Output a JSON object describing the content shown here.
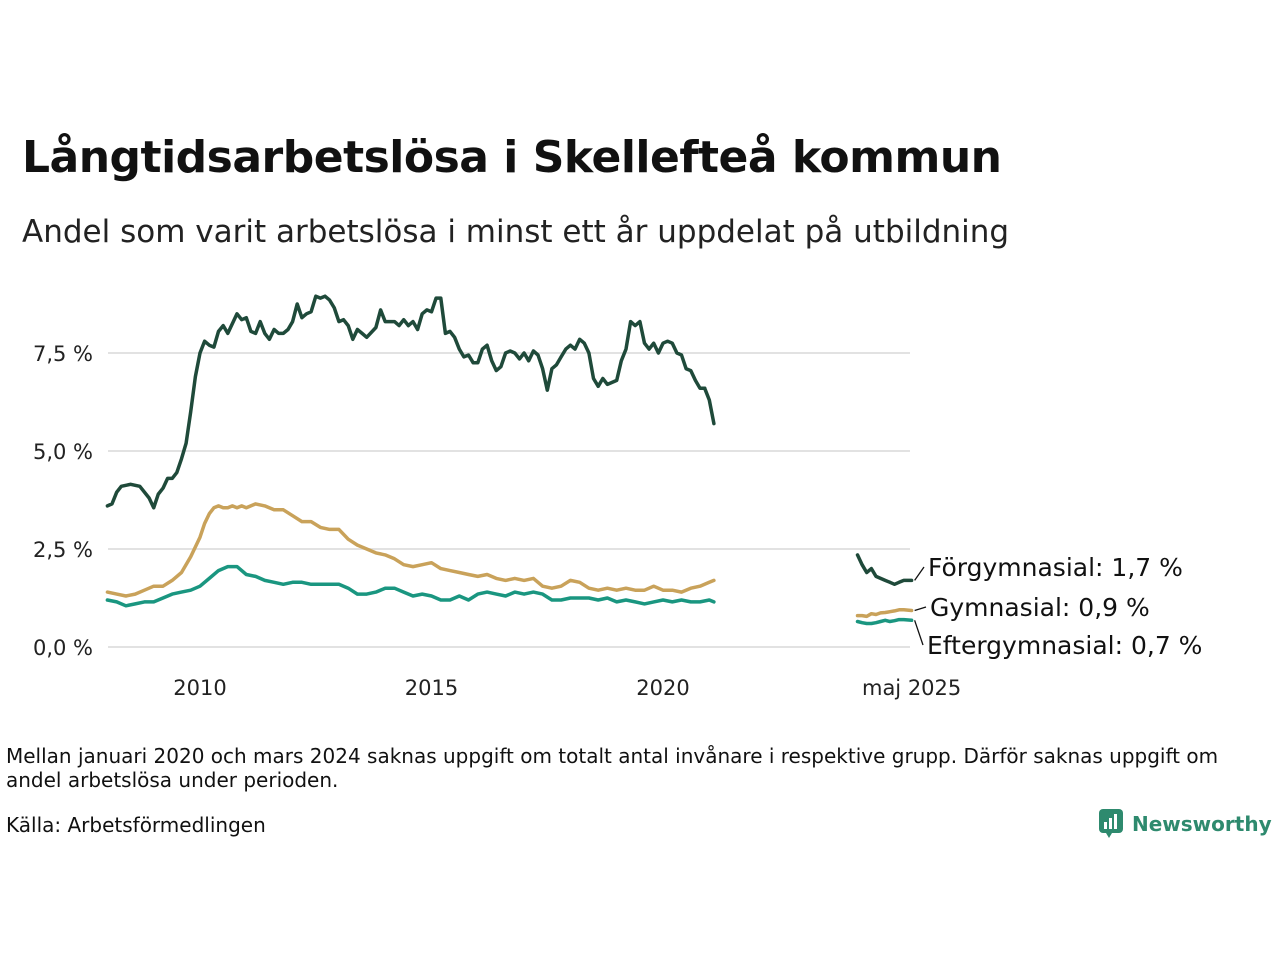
{
  "title": "Långtidsarbetslösa i Skellefteå kommun",
  "subtitle": "Andel som varit arbetslösa i minst ett år uppdelat på utbildning",
  "note": "Mellan januari 2020 och mars 2024 saknas uppgift om totalt antal invånare i respektive grupp. Därför saknas uppgift om andel arbetslösa under perioden.",
  "source": "Källa: Arbetsförmedlingen",
  "brand": "Newsworthy",
  "chart_data": {
    "type": "line",
    "title": "Långtidsarbetslösa i Skellefteå kommun",
    "subtitle": "Andel som varit arbetslösa i minst ett år uppdelat på utbildning",
    "xlabel": "",
    "ylabel": "",
    "x_ticks": [
      "2010",
      "2015",
      "2020",
      "maj 2025"
    ],
    "x_tick_values": [
      2010.0,
      2015.0,
      2020.0,
      2025.37
    ],
    "y_ticks": [
      "0,0 %",
      "2,5 %",
      "5,0 %",
      "7,5 %"
    ],
    "y_tick_values": [
      0,
      2.5,
      5.0,
      7.5
    ],
    "xlim": [
      2008.0,
      2025.4
    ],
    "ylim": [
      0,
      9.0
    ],
    "grid": true,
    "legend": "end-labels",
    "series": [
      {
        "name": "Förgymnasial",
        "end_label": "Förgymnasial: 1,7 %",
        "color": "#1f4a3a",
        "segments": [
          {
            "x": [
              2008.0,
              2008.1,
              2008.2,
              2008.3,
              2008.5,
              2008.7,
              2008.9,
              2009.0,
              2009.1,
              2009.2,
              2009.3,
              2009.4,
              2009.5,
              2009.6,
              2009.7,
              2009.8,
              2009.9,
              2010.0,
              2010.1,
              2010.2,
              2010.3,
              2010.4,
              2010.5,
              2010.6,
              2010.8,
              2010.9,
              2011.0,
              2011.1,
              2011.2,
              2011.3,
              2011.4,
              2011.5,
              2011.6,
              2011.7,
              2011.8,
              2011.9,
              2012.0,
              2012.1,
              2012.2,
              2012.3,
              2012.4,
              2012.5,
              2012.6,
              2012.7,
              2012.8,
              2012.9,
              2013.0,
              2013.1,
              2013.2,
              2013.3,
              2013.4,
              2013.5,
              2013.6,
              2013.8,
              2013.9,
              2014.0,
              2014.2,
              2014.3,
              2014.4,
              2014.5,
              2014.6,
              2014.7,
              2014.8,
              2014.9,
              2015.0,
              2015.1,
              2015.2,
              2015.3,
              2015.4,
              2015.5,
              2015.6,
              2015.7,
              2015.8,
              2015.9,
              2016.0,
              2016.1,
              2016.2,
              2016.3,
              2016.4,
              2016.5,
              2016.6,
              2016.7,
              2016.8,
              2016.9,
              2017.0,
              2017.1,
              2017.2,
              2017.3,
              2017.4,
              2017.5,
              2017.6,
              2017.7,
              2017.8,
              2017.9,
              2018.0,
              2018.1,
              2018.2,
              2018.3,
              2018.4,
              2018.5,
              2018.6,
              2018.7,
              2018.8,
              2018.9,
              2019.0,
              2019.1,
              2019.2,
              2019.3,
              2019.4,
              2019.5,
              2019.6,
              2019.7,
              2019.8,
              2019.9,
              2020.0,
              2020.1,
              2020.2,
              2020.3,
              2020.4,
              2020.5,
              2020.6,
              2020.7,
              2020.8,
              2020.9
            ],
            "y": [
              3.6,
              3.65,
              3.95,
              4.1,
              4.15,
              4.1,
              3.8,
              3.55,
              3.9,
              4.05,
              4.3,
              4.3,
              4.45,
              4.8,
              5.2,
              6.0,
              6.9,
              7.5,
              7.8,
              7.7,
              7.65,
              8.05,
              8.2,
              8.0,
              8.5,
              8.35,
              8.4,
              8.05,
              8.0,
              8.3,
              8.0,
              7.85,
              8.1,
              8.0,
              8.0,
              8.1,
              8.3,
              8.75,
              8.4,
              8.5,
              8.55,
              8.95,
              8.9,
              8.95,
              8.85,
              8.65,
              8.3,
              8.35,
              8.2,
              7.85,
              8.1,
              8.0,
              7.9,
              8.15,
              8.6,
              8.3,
              8.3,
              8.2,
              8.35,
              8.2,
              8.3,
              8.1,
              8.5,
              8.6,
              8.55,
              8.9,
              8.9,
              8.0,
              8.05,
              7.9,
              7.6,
              7.4,
              7.45,
              7.25,
              7.25,
              7.6,
              7.7,
              7.3,
              7.05,
              7.15,
              7.5,
              7.55,
              7.5,
              7.35,
              7.5,
              7.3,
              7.55,
              7.45,
              7.1,
              6.55,
              7.1,
              7.2,
              7.4,
              7.6,
              7.7,
              7.6,
              7.85,
              7.75,
              7.5,
              6.85,
              6.65,
              6.85,
              6.7,
              6.75,
              6.8,
              7.3,
              7.6,
              8.3,
              8.2,
              8.3,
              7.75,
              7.6,
              7.75,
              7.5,
              7.75,
              7.8,
              7.75,
              7.5,
              7.45,
              7.1,
              7.05,
              6.8,
              6.6,
              6.6
            ]
          },
          {
            "x": [
              2020.9,
              2021.0,
              2021.1
            ],
            "y": [
              6.6,
              6.3,
              5.7
            ]
          },
          {
            "x": [
              2024.2,
              2024.3,
              2024.4,
              2024.5,
              2024.6,
              2024.7,
              2024.8,
              2024.9,
              2025.0,
              2025.1,
              2025.2,
              2025.37
            ],
            "y": [
              2.35,
              2.1,
              1.9,
              2.0,
              1.8,
              1.75,
              1.7,
              1.65,
              1.6,
              1.65,
              1.7,
              1.7
            ]
          }
        ]
      },
      {
        "name": "Gymnasial",
        "end_label": "Gymnasial: 0,9 %",
        "color": "#c9a25a",
        "segments": [
          {
            "x": [
              2008.0,
              2008.2,
              2008.4,
              2008.6,
              2008.8,
              2009.0,
              2009.2,
              2009.4,
              2009.6,
              2009.8,
              2010.0,
              2010.1,
              2010.2,
              2010.3,
              2010.4,
              2010.5,
              2010.6,
              2010.7,
              2010.8,
              2010.9,
              2011.0,
              2011.2,
              2011.4,
              2011.6,
              2011.8,
              2012.0,
              2012.2,
              2012.4,
              2012.6,
              2012.8,
              2013.0,
              2013.2,
              2013.4,
              2013.6,
              2013.8,
              2014.0,
              2014.2,
              2014.4,
              2014.6,
              2014.8,
              2015.0,
              2015.2,
              2015.4,
              2015.6,
              2015.8,
              2016.0,
              2016.2,
              2016.4,
              2016.6,
              2016.8,
              2017.0,
              2017.2,
              2017.4,
              2017.6,
              2017.8,
              2018.0,
              2018.2,
              2018.4,
              2018.6,
              2018.8,
              2019.0,
              2019.2,
              2019.4,
              2019.6,
              2019.8,
              2020.0,
              2020.2,
              2020.4,
              2020.6,
              2020.8,
              2021.0,
              2021.1
            ],
            "y": [
              1.4,
              1.35,
              1.3,
              1.35,
              1.45,
              1.55,
              1.55,
              1.7,
              1.9,
              2.3,
              2.8,
              3.15,
              3.4,
              3.55,
              3.6,
              3.55,
              3.55,
              3.6,
              3.55,
              3.6,
              3.55,
              3.65,
              3.6,
              3.5,
              3.5,
              3.35,
              3.2,
              3.2,
              3.05,
              3.0,
              3.0,
              2.75,
              2.6,
              2.5,
              2.4,
              2.35,
              2.25,
              2.1,
              2.05,
              2.1,
              2.15,
              2.0,
              1.95,
              1.9,
              1.85,
              1.8,
              1.85,
              1.75,
              1.7,
              1.75,
              1.7,
              1.75,
              1.55,
              1.5,
              1.55,
              1.7,
              1.65,
              1.5,
              1.45,
              1.5,
              1.45,
              1.5,
              1.45,
              1.45,
              1.55,
              1.45,
              1.45,
              1.4,
              1.5,
              1.55,
              1.65,
              1.7
            ]
          },
          {
            "x": [
              2024.2,
              2024.3,
              2024.4,
              2024.5,
              2024.6,
              2024.7,
              2024.8,
              2024.9,
              2025.0,
              2025.1,
              2025.2,
              2025.37
            ],
            "y": [
              0.8,
              0.8,
              0.78,
              0.85,
              0.83,
              0.87,
              0.88,
              0.9,
              0.92,
              0.95,
              0.95,
              0.93
            ]
          }
        ]
      },
      {
        "name": "Eftergymnasial",
        "end_label": "Eftergymnasial: 0,7 %",
        "color": "#1a9680",
        "segments": [
          {
            "x": [
              2008.0,
              2008.2,
              2008.4,
              2008.6,
              2008.8,
              2009.0,
              2009.2,
              2009.4,
              2009.6,
              2009.8,
              2010.0,
              2010.2,
              2010.4,
              2010.6,
              2010.8,
              2011.0,
              2011.2,
              2011.4,
              2011.6,
              2011.8,
              2012.0,
              2012.2,
              2012.4,
              2012.6,
              2012.8,
              2013.0,
              2013.2,
              2013.4,
              2013.6,
              2013.8,
              2014.0,
              2014.2,
              2014.4,
              2014.6,
              2014.8,
              2015.0,
              2015.2,
              2015.4,
              2015.6,
              2015.8,
              2016.0,
              2016.2,
              2016.4,
              2016.6,
              2016.8,
              2017.0,
              2017.2,
              2017.4,
              2017.6,
              2017.8,
              2018.0,
              2018.2,
              2018.4,
              2018.6,
              2018.8,
              2019.0,
              2019.2,
              2019.4,
              2019.6,
              2019.8,
              2020.0,
              2020.2,
              2020.4,
              2020.6,
              2020.8,
              2021.0,
              2021.1
            ],
            "y": [
              1.2,
              1.15,
              1.05,
              1.1,
              1.15,
              1.15,
              1.25,
              1.35,
              1.4,
              1.45,
              1.55,
              1.75,
              1.95,
              2.05,
              2.05,
              1.85,
              1.8,
              1.7,
              1.65,
              1.6,
              1.65,
              1.65,
              1.6,
              1.6,
              1.6,
              1.6,
              1.5,
              1.35,
              1.35,
              1.4,
              1.5,
              1.5,
              1.4,
              1.3,
              1.35,
              1.3,
              1.2,
              1.2,
              1.3,
              1.2,
              1.35,
              1.4,
              1.35,
              1.3,
              1.4,
              1.35,
              1.4,
              1.35,
              1.2,
              1.2,
              1.25,
              1.25,
              1.25,
              1.2,
              1.25,
              1.15,
              1.2,
              1.15,
              1.1,
              1.15,
              1.2,
              1.15,
              1.2,
              1.15,
              1.15,
              1.2,
              1.15
            ]
          },
          {
            "x": [
              2024.2,
              2024.3,
              2024.4,
              2024.5,
              2024.6,
              2024.7,
              2024.8,
              2024.9,
              2025.0,
              2025.1,
              2025.2,
              2025.37
            ],
            "y": [
              0.65,
              0.62,
              0.6,
              0.6,
              0.62,
              0.65,
              0.68,
              0.65,
              0.67,
              0.7,
              0.7,
              0.68
            ]
          }
        ]
      }
    ]
  }
}
